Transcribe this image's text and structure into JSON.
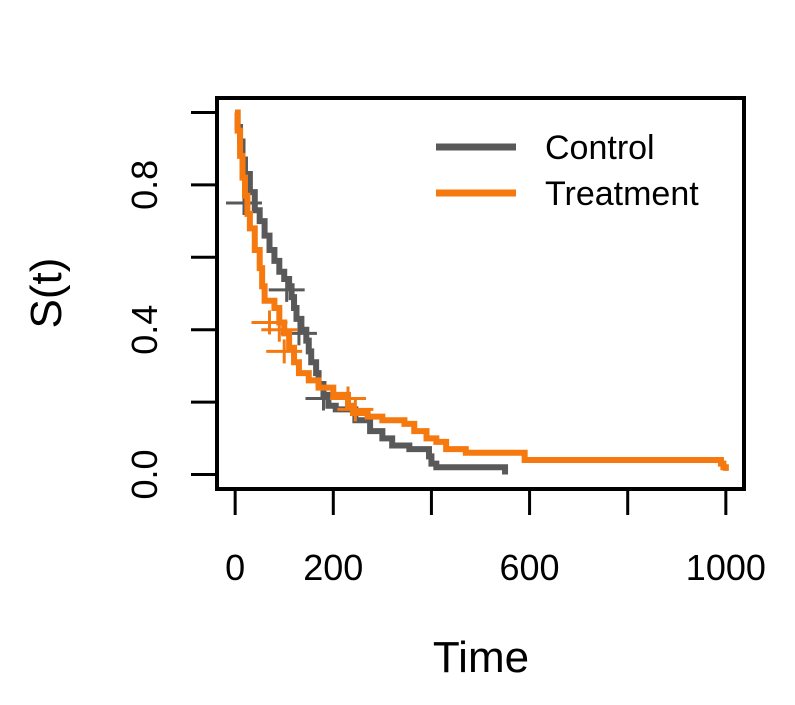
{
  "chart_data": {
    "type": "line",
    "subtype": "kaplan-meier-step",
    "xlabel": "Time",
    "ylabel": "S(t)",
    "xlim": [
      -37,
      1037
    ],
    "ylim": [
      -0.04,
      1.04
    ],
    "xticks": [
      0,
      200,
      400,
      600,
      800,
      1000
    ],
    "xtick_labels": [
      "0",
      "200",
      "",
      "600",
      "",
      "1000"
    ],
    "yticks": [
      0.0,
      0.2,
      0.4,
      0.6,
      0.8,
      1.0
    ],
    "ytick_labels": [
      "0.0",
      "",
      "0.4",
      "",
      "0.8",
      ""
    ],
    "legend": {
      "position": "top-right"
    },
    "series": [
      {
        "name": "Control",
        "color": "#595959",
        "steps": [
          [
            0,
            1.0
          ],
          [
            5,
            0.96
          ],
          [
            10,
            0.92
          ],
          [
            15,
            0.87
          ],
          [
            20,
            0.83
          ],
          [
            30,
            0.78
          ],
          [
            40,
            0.73
          ],
          [
            50,
            0.7
          ],
          [
            60,
            0.66
          ],
          [
            70,
            0.62
          ],
          [
            80,
            0.59
          ],
          [
            90,
            0.56
          ],
          [
            100,
            0.54
          ],
          [
            110,
            0.52
          ],
          [
            115,
            0.49
          ],
          [
            120,
            0.46
          ],
          [
            125,
            0.43
          ],
          [
            135,
            0.4
          ],
          [
            145,
            0.37
          ],
          [
            150,
            0.34
          ],
          [
            155,
            0.31
          ],
          [
            165,
            0.28
          ],
          [
            170,
            0.25
          ],
          [
            180,
            0.22
          ],
          [
            190,
            0.19
          ],
          [
            205,
            0.18
          ],
          [
            245,
            0.15
          ],
          [
            275,
            0.12
          ],
          [
            300,
            0.1
          ],
          [
            320,
            0.08
          ],
          [
            355,
            0.07
          ],
          [
            395,
            0.05
          ],
          [
            400,
            0.03
          ],
          [
            410,
            0.02
          ],
          [
            550,
            0.0
          ]
        ],
        "censor": [
          [
            18,
            0.75
          ],
          [
            105,
            0.51
          ],
          [
            130,
            0.39
          ],
          [
            180,
            0.21
          ]
        ]
      },
      {
        "name": "Treatment",
        "color": "#F5790F",
        "steps": [
          [
            0,
            1.0
          ],
          [
            5,
            0.95
          ],
          [
            10,
            0.88
          ],
          [
            15,
            0.82
          ],
          [
            20,
            0.77
          ],
          [
            25,
            0.72
          ],
          [
            30,
            0.68
          ],
          [
            40,
            0.62
          ],
          [
            50,
            0.57
          ],
          [
            55,
            0.52
          ],
          [
            60,
            0.48
          ],
          [
            80,
            0.46
          ],
          [
            90,
            0.42
          ],
          [
            100,
            0.39
          ],
          [
            110,
            0.35
          ],
          [
            120,
            0.31
          ],
          [
            130,
            0.28
          ],
          [
            150,
            0.26
          ],
          [
            170,
            0.24
          ],
          [
            200,
            0.22
          ],
          [
            230,
            0.19
          ],
          [
            240,
            0.17
          ],
          [
            270,
            0.16
          ],
          [
            300,
            0.15
          ],
          [
            345,
            0.14
          ],
          [
            365,
            0.12
          ],
          [
            390,
            0.1
          ],
          [
            410,
            0.09
          ],
          [
            430,
            0.07
          ],
          [
            470,
            0.06
          ],
          [
            590,
            0.04
          ],
          [
            990,
            0.03
          ],
          [
            995,
            0.02
          ],
          [
            1000,
            0.01
          ]
        ],
        "censor": [
          [
            70,
            0.42
          ],
          [
            90,
            0.4
          ],
          [
            100,
            0.34
          ],
          [
            230,
            0.21
          ],
          [
            245,
            0.18
          ]
        ]
      }
    ]
  }
}
